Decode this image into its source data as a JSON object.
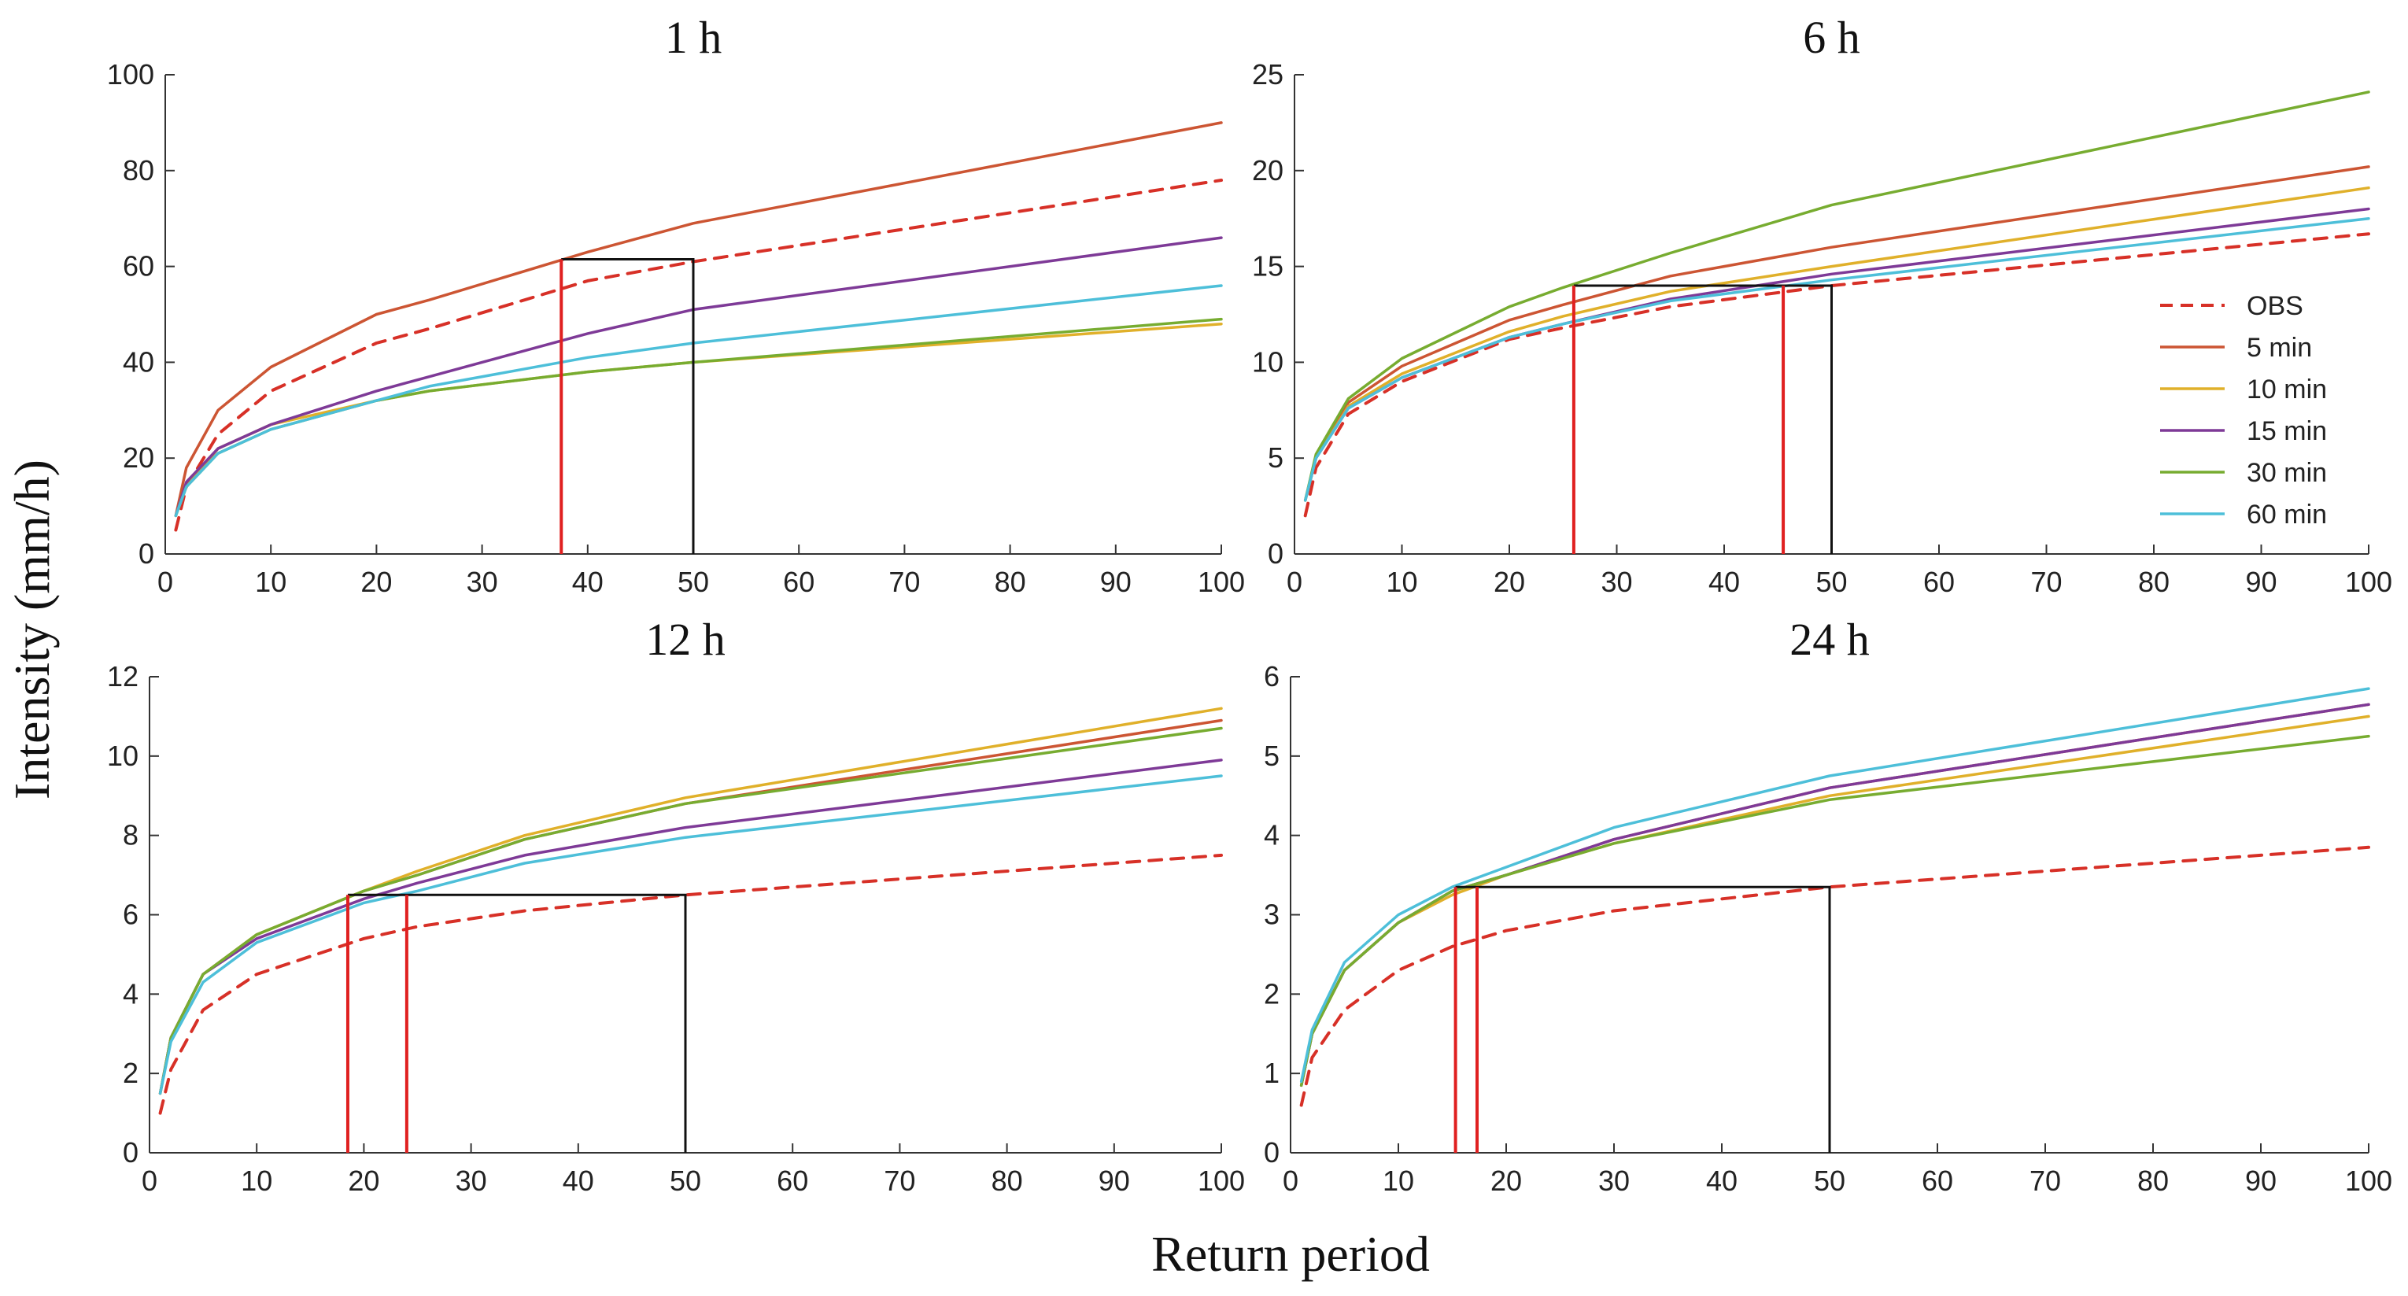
{
  "figure": {
    "ylabel": "Intensity (mm/h)",
    "xlabel": "Return period"
  },
  "legend": [
    {
      "name": "OBS",
      "color": "#d73027",
      "dash": true
    },
    {
      "name": "5 min",
      "color": "#cc5533",
      "dash": false
    },
    {
      "name": "10 min",
      "color": "#e0b02a",
      "dash": false
    },
    {
      "name": "15 min",
      "color": "#7e3a97",
      "dash": false
    },
    {
      "name": "30 min",
      "color": "#77ac30",
      "dash": false
    },
    {
      "name": "60 min",
      "color": "#4dbfd9",
      "dash": false
    }
  ],
  "chart_data": [
    {
      "type": "line",
      "title": "1 h",
      "xlim": [
        0,
        100
      ],
      "ylim": [
        0,
        100
      ],
      "xticks": [
        0,
        10,
        20,
        30,
        40,
        50,
        60,
        70,
        80,
        90,
        100
      ],
      "yticks": [
        0,
        20,
        40,
        60,
        80,
        100
      ],
      "x": [
        1,
        2,
        5,
        10,
        20,
        25,
        40,
        50,
        100
      ],
      "series": [
        {
          "name": "OBS",
          "values": [
            5,
            14,
            25,
            34,
            44,
            47,
            57,
            61,
            78
          ]
        },
        {
          "name": "5 min",
          "values": [
            8,
            18,
            30,
            39,
            50,
            53,
            63,
            69,
            90
          ]
        },
        {
          "name": "10 min",
          "values": [
            8,
            14,
            22,
            27,
            32,
            34,
            38,
            40,
            48
          ]
        },
        {
          "name": "15 min",
          "values": [
            8,
            15,
            22,
            27,
            34,
            37,
            46,
            51,
            66
          ]
        },
        {
          "name": "30 min",
          "values": [
            8,
            14,
            21,
            26,
            32,
            34,
            38,
            40,
            49
          ]
        },
        {
          "name": "60 min",
          "values": [
            8,
            14,
            21,
            26,
            32,
            35,
            41,
            44,
            56
          ]
        }
      ],
      "markers": {
        "red_lines": [
          37.5
        ],
        "black_box": [
          50,
          61.5
        ]
      }
    },
    {
      "type": "line",
      "title": "6 h",
      "xlim": [
        0,
        100
      ],
      "ylim": [
        0,
        25
      ],
      "xticks": [
        0,
        10,
        20,
        30,
        40,
        50,
        60,
        70,
        80,
        90,
        100
      ],
      "yticks": [
        0,
        5,
        10,
        15,
        20,
        25
      ],
      "x": [
        1,
        2,
        5,
        10,
        20,
        25,
        35,
        50,
        100
      ],
      "series": [
        {
          "name": "OBS",
          "values": [
            2,
            4.5,
            7.3,
            9.0,
            11.2,
            11.8,
            12.9,
            14.0,
            16.7
          ]
        },
        {
          "name": "5 min",
          "values": [
            2.8,
            5,
            7.9,
            9.8,
            12.2,
            13.0,
            14.5,
            16.0,
            20.2
          ]
        },
        {
          "name": "10 min",
          "values": [
            2.8,
            5,
            7.7,
            9.4,
            11.6,
            12.4,
            13.7,
            15.0,
            19.1
          ]
        },
        {
          "name": "15 min",
          "values": [
            2.8,
            5,
            7.6,
            9.2,
            11.3,
            12.0,
            13.3,
            14.6,
            18.0
          ]
        },
        {
          "name": "30 min",
          "values": [
            2.8,
            5.2,
            8.1,
            10.2,
            12.9,
            13.9,
            15.7,
            18.2,
            24.1
          ]
        },
        {
          "name": "60 min",
          "values": [
            2.8,
            5,
            7.6,
            9.2,
            11.3,
            12.0,
            13.2,
            14.3,
            17.5
          ]
        }
      ],
      "markers": {
        "red_lines": [
          26,
          45.5
        ],
        "black_box": [
          50,
          14
        ]
      }
    },
    {
      "type": "line",
      "title": "12 h",
      "xlim": [
        0,
        100
      ],
      "ylim": [
        0,
        12
      ],
      "xticks": [
        0,
        10,
        20,
        30,
        40,
        50,
        60,
        70,
        80,
        90,
        100
      ],
      "yticks": [
        0,
        2,
        4,
        6,
        8,
        10,
        12
      ],
      "x": [
        1,
        2,
        5,
        10,
        20,
        25,
        35,
        50,
        100
      ],
      "series": [
        {
          "name": "OBS",
          "values": [
            1,
            2.1,
            3.6,
            4.5,
            5.4,
            5.7,
            6.1,
            6.5,
            7.5
          ]
        },
        {
          "name": "5 min",
          "values": [
            1.5,
            2.9,
            4.5,
            5.5,
            6.6,
            7.0,
            7.9,
            8.8,
            10.9
          ]
        },
        {
          "name": "10 min",
          "values": [
            1.5,
            2.9,
            4.5,
            5.5,
            6.6,
            7.1,
            8.0,
            8.95,
            11.2
          ]
        },
        {
          "name": "15 min",
          "values": [
            1.5,
            2.9,
            4.5,
            5.4,
            6.4,
            6.8,
            7.5,
            8.2,
            9.9
          ]
        },
        {
          "name": "30 min",
          "values": [
            1.5,
            2.9,
            4.5,
            5.5,
            6.6,
            7.0,
            7.9,
            8.8,
            10.7
          ]
        },
        {
          "name": "60 min",
          "values": [
            1.5,
            2.8,
            4.3,
            5.3,
            6.3,
            6.6,
            7.3,
            7.95,
            9.5
          ]
        }
      ],
      "markers": {
        "red_lines": [
          18.5,
          24
        ],
        "black_box": [
          50,
          6.5
        ]
      }
    },
    {
      "type": "line",
      "title": "24 h",
      "xlim": [
        0,
        100
      ],
      "ylim": [
        0,
        6
      ],
      "xticks": [
        0,
        10,
        20,
        30,
        40,
        50,
        60,
        70,
        80,
        90,
        100
      ],
      "yticks": [
        0,
        1,
        2,
        3,
        4,
        5,
        6
      ],
      "x": [
        1,
        2,
        5,
        10,
        15,
        20,
        30,
        50,
        100
      ],
      "series": [
        {
          "name": "OBS",
          "values": [
            0.6,
            1.2,
            1.8,
            2.3,
            2.6,
            2.8,
            3.05,
            3.35,
            3.85
          ]
        },
        {
          "name": "5 min",
          "values": [
            0.85,
            1.5,
            2.3,
            2.9,
            3.3,
            3.5,
            3.95,
            4.6,
            5.65
          ]
        },
        {
          "name": "10 min",
          "values": [
            0.85,
            1.5,
            2.3,
            2.9,
            3.25,
            3.5,
            3.9,
            4.5,
            5.5
          ]
        },
        {
          "name": "15 min",
          "values": [
            0.85,
            1.5,
            2.3,
            2.9,
            3.3,
            3.5,
            3.95,
            4.6,
            5.65
          ]
        },
        {
          "name": "30 min",
          "values": [
            0.85,
            1.5,
            2.3,
            2.9,
            3.3,
            3.5,
            3.9,
            4.45,
            5.25
          ]
        },
        {
          "name": "60 min",
          "values": [
            0.9,
            1.55,
            2.4,
            3.0,
            3.35,
            3.6,
            4.1,
            4.75,
            5.85
          ]
        }
      ],
      "markers": {
        "red_lines": [
          15.3,
          17.3
        ],
        "black_box": [
          50,
          3.35
        ]
      }
    }
  ]
}
